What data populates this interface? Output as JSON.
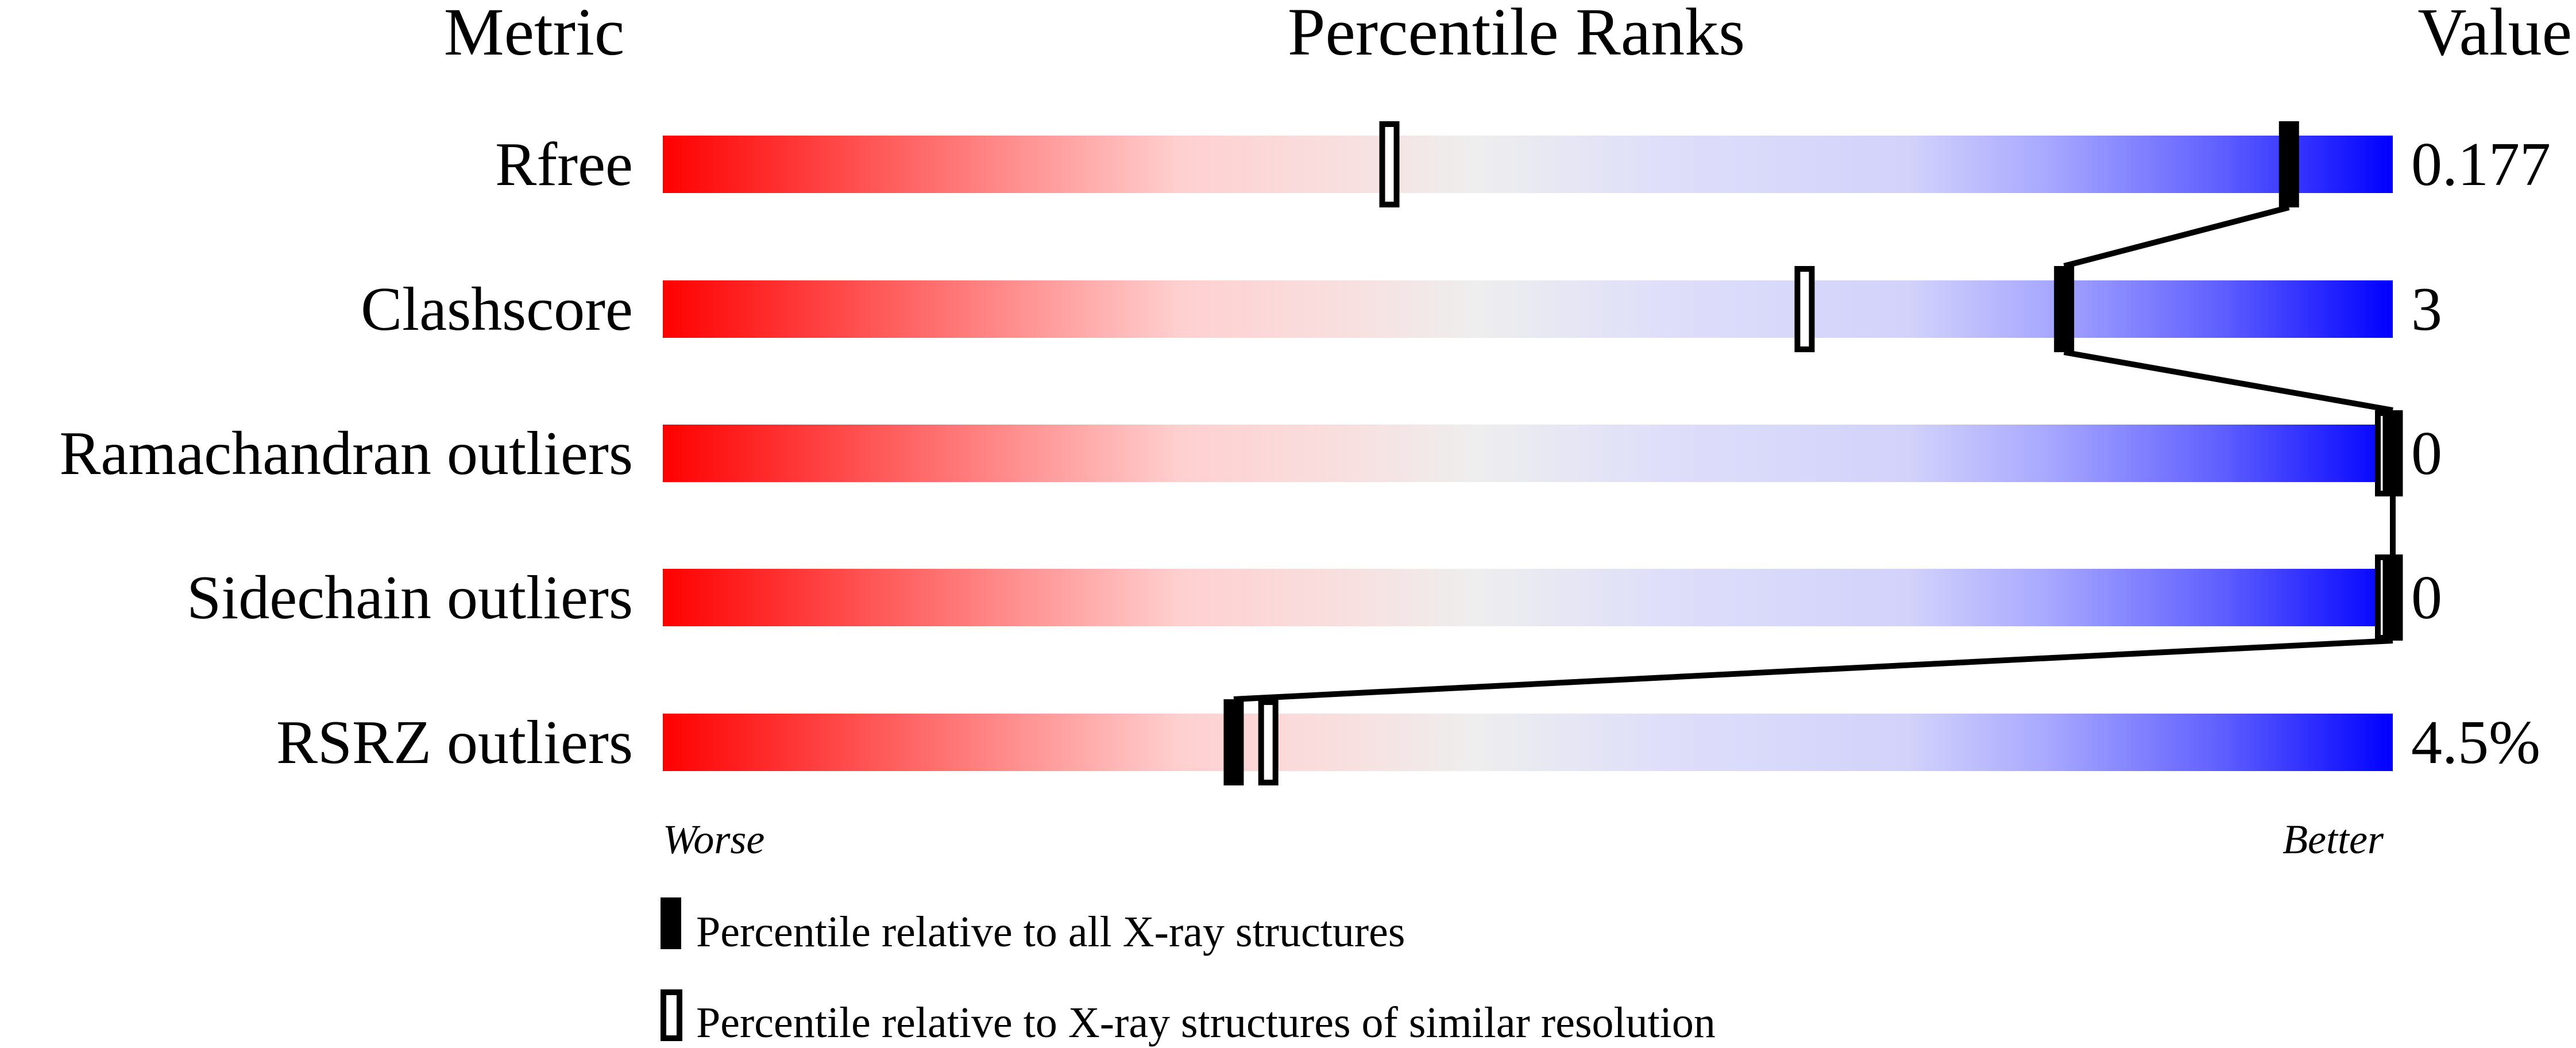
{
  "chart_data": {
    "type": "percentile-slider",
    "headers": {
      "metric": "Metric",
      "ranks": "Percentile Ranks",
      "value": "Value"
    },
    "xlim": [
      0,
      100
    ],
    "axis_labels": {
      "left": "Worse",
      "right": "Better"
    },
    "gradient_colors": [
      "#ff0000",
      "#eeeeee",
      "#0000ff"
    ],
    "rows": [
      {
        "metric": "Rfree",
        "value": "0.177",
        "percentile_all": 94,
        "percentile_similar": 42
      },
      {
        "metric": "Clashscore",
        "value": "3",
        "percentile_all": 81,
        "percentile_similar": 66
      },
      {
        "metric": "Ramachandran outliers",
        "value": "0",
        "percentile_all": 100,
        "percentile_similar": 100
      },
      {
        "metric": "Sidechain outliers",
        "value": "0",
        "percentile_all": 100,
        "percentile_similar": 100
      },
      {
        "metric": "RSRZ outliers",
        "value": "4.5%",
        "percentile_all": 33,
        "percentile_similar": 35
      }
    ],
    "legend": [
      {
        "marker": "filled",
        "label": "Percentile relative to all X-ray structures"
      },
      {
        "marker": "open",
        "label": "Percentile relative to X-ray structures of similar resolution"
      }
    ]
  }
}
